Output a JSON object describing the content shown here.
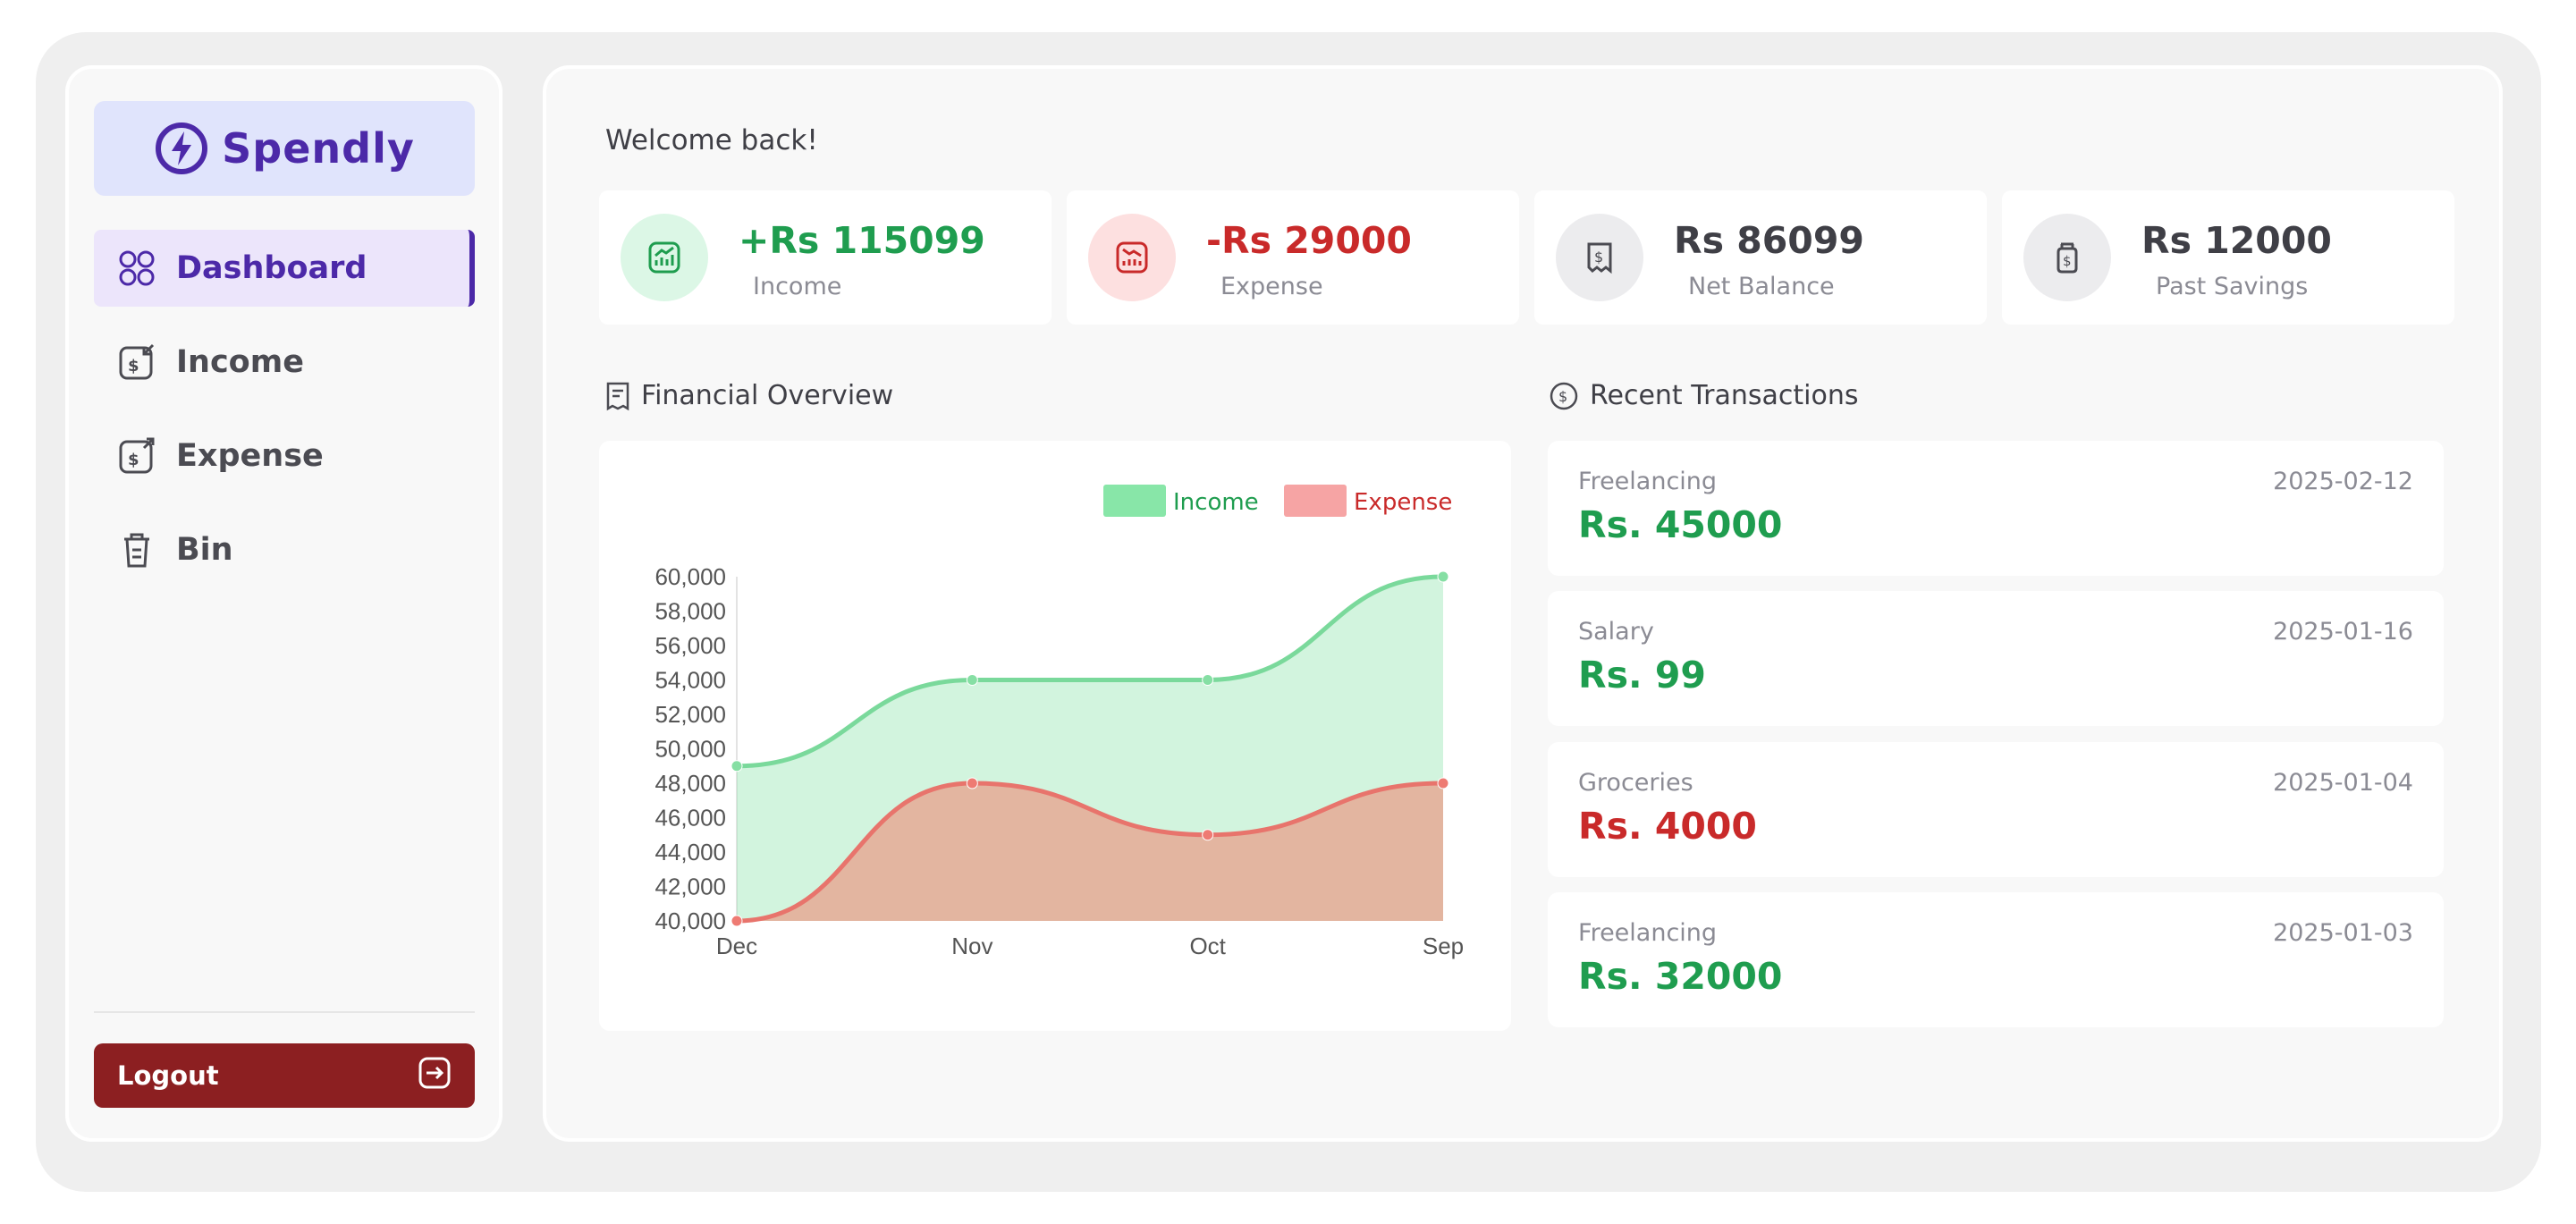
{
  "app": {
    "brand": "Spendly"
  },
  "colors": {
    "accent": "#4c29a8",
    "income": "#1f9d4f",
    "expense": "#c92a2a",
    "logout": "#8c1f21"
  },
  "sidebar": {
    "items": [
      {
        "label": "Dashboard",
        "icon": "grid-icon",
        "active": true
      },
      {
        "label": "Income",
        "icon": "income-icon",
        "active": false
      },
      {
        "label": "Expense",
        "icon": "expense-icon",
        "active": false
      },
      {
        "label": "Bin",
        "icon": "trash-icon",
        "active": false
      }
    ],
    "logout": {
      "label": "Logout",
      "icon": "logout-icon"
    }
  },
  "main": {
    "welcome": "Welcome back!",
    "stats": [
      {
        "value": "+Rs 115099",
        "label": "Income",
        "icon": "chart-up-icon"
      },
      {
        "value": "-Rs 29000",
        "label": "Expense",
        "icon": "chart-down-icon"
      },
      {
        "value": "Rs 86099",
        "label": "Net Balance",
        "icon": "receipt-icon"
      },
      {
        "value": "Rs 12000",
        "label": "Past Savings",
        "icon": "money-jar-icon"
      }
    ],
    "overview_title": "Financial Overview",
    "transactions_title": "Recent Transactions",
    "transactions": [
      {
        "category": "Freelancing",
        "date": "2025-02-12",
        "amount": "Rs. 45000",
        "type": "income"
      },
      {
        "category": "Salary",
        "date": "2025-01-16",
        "amount": "Rs. 99",
        "type": "income"
      },
      {
        "category": "Groceries",
        "date": "2025-01-04",
        "amount": "Rs. 4000",
        "type": "expense"
      },
      {
        "category": "Freelancing",
        "date": "2025-01-03",
        "amount": "Rs. 32000",
        "type": "income"
      }
    ]
  },
  "chart_data": {
    "type": "area",
    "x": [
      "Dec",
      "Nov",
      "Oct",
      "Sep"
    ],
    "series": [
      {
        "name": "Income",
        "values": [
          49000,
          54000,
          54000,
          60000
        ],
        "color": "#7ee0a0"
      },
      {
        "name": "Expense",
        "values": [
          40000,
          48000,
          45000,
          48000
        ],
        "color": "#f4a3a3"
      }
    ],
    "ylim": [
      40000,
      60000
    ],
    "yticks": [
      "60,000",
      "58,000",
      "56,000",
      "54,000",
      "52,000",
      "50,000",
      "48,000",
      "46,000",
      "44,000",
      "42,000",
      "40,000"
    ],
    "legend": "top-right",
    "grid": false
  }
}
